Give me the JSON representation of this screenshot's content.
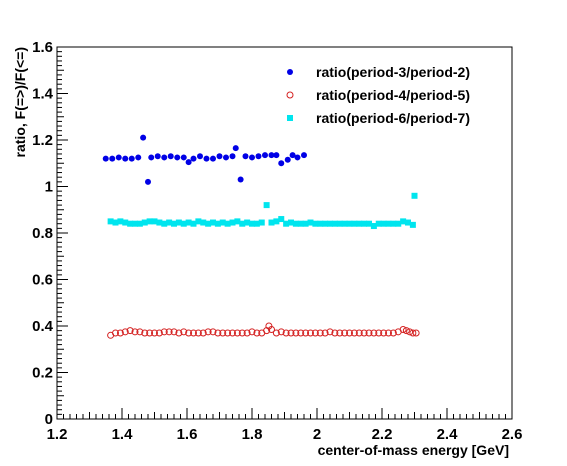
{
  "chart_data": {
    "type": "scatter",
    "xlabel": "center-of-mass energy [GeV]",
    "ylabel": "ratio, F(=>)/F(<=)",
    "xlim": [
      1.2,
      2.6
    ],
    "ylim": [
      0,
      1.6
    ],
    "x_major_ticks": [
      1.2,
      1.4,
      1.6,
      1.8,
      2,
      2.2,
      2.4,
      2.6
    ],
    "x_tick_labels": [
      "1.2",
      "1.4",
      "1.6",
      "1.8",
      "2",
      "2.2",
      "2.4",
      "2.6"
    ],
    "y_major_ticks": [
      0,
      0.2,
      0.4,
      0.6,
      0.8,
      1,
      1.2,
      1.4,
      1.6
    ],
    "y_tick_labels": [
      "0",
      "0.2",
      "0.4",
      "0.6",
      "0.8",
      "1",
      "1.2",
      "1.4",
      "1.6"
    ],
    "grid": false,
    "legend_position": "top-right",
    "series": [
      {
        "name": "ratio(period-3/period-2)",
        "marker": "filled-circle",
        "color": "#0000e6",
        "points": [
          [
            1.35,
            1.12
          ],
          [
            1.37,
            1.12
          ],
          [
            1.39,
            1.125
          ],
          [
            1.41,
            1.12
          ],
          [
            1.43,
            1.12
          ],
          [
            1.45,
            1.125
          ],
          [
            1.465,
            1.21
          ],
          [
            1.48,
            1.02
          ],
          [
            1.49,
            1.125
          ],
          [
            1.51,
            1.13
          ],
          [
            1.53,
            1.125
          ],
          [
            1.55,
            1.13
          ],
          [
            1.57,
            1.125
          ],
          [
            1.59,
            1.125
          ],
          [
            1.605,
            1.105
          ],
          [
            1.62,
            1.12
          ],
          [
            1.64,
            1.13
          ],
          [
            1.66,
            1.12
          ],
          [
            1.68,
            1.12
          ],
          [
            1.7,
            1.13
          ],
          [
            1.72,
            1.125
          ],
          [
            1.74,
            1.13
          ],
          [
            1.75,
            1.165
          ],
          [
            1.765,
            1.03
          ],
          [
            1.78,
            1.13
          ],
          [
            1.8,
            1.125
          ],
          [
            1.82,
            1.13
          ],
          [
            1.84,
            1.135
          ],
          [
            1.86,
            1.135
          ],
          [
            1.875,
            1.135
          ],
          [
            1.89,
            1.1
          ],
          [
            1.91,
            1.115
          ],
          [
            1.925,
            1.135
          ],
          [
            1.94,
            1.125
          ],
          [
            1.96,
            1.135
          ]
        ]
      },
      {
        "name": "ratio(period-4/period-5)",
        "marker": "open-circle",
        "color": "#d42020",
        "points": [
          [
            1.365,
            0.36
          ],
          [
            1.38,
            0.37
          ],
          [
            1.395,
            0.37
          ],
          [
            1.41,
            0.375
          ],
          [
            1.425,
            0.38
          ],
          [
            1.44,
            0.375
          ],
          [
            1.455,
            0.375
          ],
          [
            1.47,
            0.37
          ],
          [
            1.485,
            0.37
          ],
          [
            1.5,
            0.37
          ],
          [
            1.515,
            0.37
          ],
          [
            1.53,
            0.375
          ],
          [
            1.545,
            0.375
          ],
          [
            1.56,
            0.375
          ],
          [
            1.575,
            0.37
          ],
          [
            1.59,
            0.375
          ],
          [
            1.605,
            0.37
          ],
          [
            1.62,
            0.37
          ],
          [
            1.635,
            0.37
          ],
          [
            1.65,
            0.37
          ],
          [
            1.665,
            0.375
          ],
          [
            1.68,
            0.375
          ],
          [
            1.695,
            0.37
          ],
          [
            1.71,
            0.37
          ],
          [
            1.725,
            0.37
          ],
          [
            1.74,
            0.37
          ],
          [
            1.755,
            0.37
          ],
          [
            1.77,
            0.37
          ],
          [
            1.785,
            0.37
          ],
          [
            1.8,
            0.375
          ],
          [
            1.815,
            0.37
          ],
          [
            1.83,
            0.37
          ],
          [
            1.845,
            0.38
          ],
          [
            1.852,
            0.4
          ],
          [
            1.86,
            0.385
          ],
          [
            1.875,
            0.37
          ],
          [
            1.89,
            0.375
          ],
          [
            1.905,
            0.37
          ],
          [
            1.92,
            0.37
          ],
          [
            1.935,
            0.37
          ],
          [
            1.95,
            0.37
          ],
          [
            1.965,
            0.37
          ],
          [
            1.98,
            0.37
          ],
          [
            1.995,
            0.37
          ],
          [
            2.01,
            0.37
          ],
          [
            2.025,
            0.37
          ],
          [
            2.04,
            0.375
          ],
          [
            2.055,
            0.37
          ],
          [
            2.07,
            0.37
          ],
          [
            2.085,
            0.37
          ],
          [
            2.1,
            0.37
          ],
          [
            2.115,
            0.37
          ],
          [
            2.13,
            0.37
          ],
          [
            2.145,
            0.37
          ],
          [
            2.16,
            0.37
          ],
          [
            2.175,
            0.37
          ],
          [
            2.19,
            0.37
          ],
          [
            2.205,
            0.37
          ],
          [
            2.22,
            0.37
          ],
          [
            2.235,
            0.37
          ],
          [
            2.25,
            0.375
          ],
          [
            2.265,
            0.385
          ],
          [
            2.275,
            0.38
          ],
          [
            2.285,
            0.375
          ],
          [
            2.295,
            0.37
          ],
          [
            2.305,
            0.37
          ]
        ]
      },
      {
        "name": "ratio(period-6/period-7)",
        "marker": "filled-square",
        "color": "#00e5ee",
        "points": [
          [
            1.365,
            0.85
          ],
          [
            1.38,
            0.845
          ],
          [
            1.395,
            0.85
          ],
          [
            1.41,
            0.845
          ],
          [
            1.425,
            0.84
          ],
          [
            1.44,
            0.84
          ],
          [
            1.455,
            0.84
          ],
          [
            1.47,
            0.845
          ],
          [
            1.485,
            0.85
          ],
          [
            1.5,
            0.85
          ],
          [
            1.515,
            0.845
          ],
          [
            1.53,
            0.84
          ],
          [
            1.545,
            0.845
          ],
          [
            1.56,
            0.84
          ],
          [
            1.575,
            0.845
          ],
          [
            1.59,
            0.84
          ],
          [
            1.605,
            0.845
          ],
          [
            1.62,
            0.84
          ],
          [
            1.635,
            0.85
          ],
          [
            1.65,
            0.845
          ],
          [
            1.665,
            0.84
          ],
          [
            1.68,
            0.845
          ],
          [
            1.695,
            0.84
          ],
          [
            1.71,
            0.845
          ],
          [
            1.725,
            0.84
          ],
          [
            1.74,
            0.845
          ],
          [
            1.755,
            0.85
          ],
          [
            1.77,
            0.84
          ],
          [
            1.785,
            0.845
          ],
          [
            1.8,
            0.84
          ],
          [
            1.815,
            0.84
          ],
          [
            1.83,
            0.845
          ],
          [
            1.845,
            0.92
          ],
          [
            1.86,
            0.845
          ],
          [
            1.875,
            0.85
          ],
          [
            1.89,
            0.86
          ],
          [
            1.905,
            0.84
          ],
          [
            1.92,
            0.845
          ],
          [
            1.935,
            0.84
          ],
          [
            1.95,
            0.84
          ],
          [
            1.965,
            0.84
          ],
          [
            1.98,
            0.845
          ],
          [
            1.995,
            0.84
          ],
          [
            2.01,
            0.84
          ],
          [
            2.025,
            0.84
          ],
          [
            2.04,
            0.84
          ],
          [
            2.055,
            0.84
          ],
          [
            2.07,
            0.84
          ],
          [
            2.085,
            0.84
          ],
          [
            2.1,
            0.84
          ],
          [
            2.115,
            0.84
          ],
          [
            2.13,
            0.84
          ],
          [
            2.145,
            0.84
          ],
          [
            2.16,
            0.84
          ],
          [
            2.175,
            0.83
          ],
          [
            2.19,
            0.84
          ],
          [
            2.205,
            0.84
          ],
          [
            2.22,
            0.84
          ],
          [
            2.235,
            0.84
          ],
          [
            2.25,
            0.84
          ],
          [
            2.265,
            0.85
          ],
          [
            2.28,
            0.845
          ],
          [
            2.295,
            0.835
          ],
          [
            2.3,
            0.96
          ]
        ]
      }
    ]
  }
}
